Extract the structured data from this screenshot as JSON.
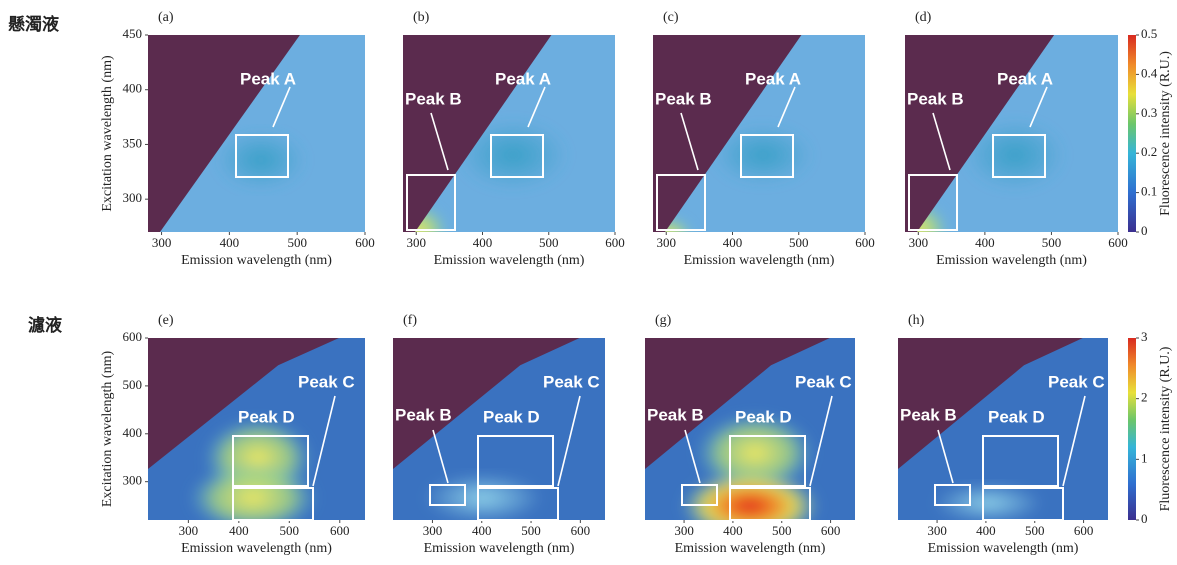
{
  "row_labels": [
    "懸濁液",
    "濾液"
  ],
  "chart_data": [
    {
      "type": "heatmap",
      "panel": "(a)",
      "xlabel": "Emission wavelength (nm)",
      "ylabel": "Excitation wavelength (nm)",
      "xlim": [
        280,
        600
      ],
      "xticks": [
        300,
        400,
        500,
        600
      ],
      "ylim": [
        270,
        450
      ],
      "yticks": [
        300,
        350,
        400,
        450
      ],
      "annotations": [
        "Peak A"
      ]
    },
    {
      "type": "heatmap",
      "panel": "(b)",
      "xlabel": "Emission wavelength (nm)",
      "xlim": [
        280,
        600
      ],
      "xticks": [
        300,
        400,
        500,
        600
      ],
      "ylim": [
        270,
        450
      ],
      "annotations": [
        "Peak B",
        "Peak A"
      ]
    },
    {
      "type": "heatmap",
      "panel": "(c)",
      "xlabel": "Emission wavelength (nm)",
      "xlim": [
        280,
        600
      ],
      "xticks": [
        300,
        400,
        500,
        600
      ],
      "ylim": [
        270,
        450
      ],
      "annotations": [
        "Peak B",
        "Peak A"
      ]
    },
    {
      "type": "heatmap",
      "panel": "(d)",
      "xlabel": "Emission wavelength (nm)",
      "xlim": [
        280,
        600
      ],
      "xticks": [
        300,
        400,
        500,
        600
      ],
      "ylim": [
        270,
        450
      ],
      "annotations": [
        "Peak B",
        "Peak A"
      ],
      "colorbar": {
        "label": "Fluorescence intensity (R.U.)",
        "lim": [
          0,
          0.5
        ],
        "ticks": [
          0,
          0.1,
          0.2,
          0.3,
          0.4,
          0.5
        ]
      }
    },
    {
      "type": "heatmap",
      "panel": "(e)",
      "xlabel": "Emission wavelength (nm)",
      "ylabel": "Excitation wavelength (nm)",
      "xlim": [
        220,
        650
      ],
      "xticks": [
        300,
        400,
        500,
        600
      ],
      "ylim": [
        220,
        600
      ],
      "yticks": [
        300,
        400,
        500,
        600
      ],
      "annotations": [
        "Peak D",
        "Peak C"
      ]
    },
    {
      "type": "heatmap",
      "panel": "(f)",
      "xlabel": "Emission wavelength (nm)",
      "xlim": [
        220,
        650
      ],
      "xticks": [
        300,
        400,
        500,
        600
      ],
      "ylim": [
        220,
        600
      ],
      "annotations": [
        "Peak B",
        "Peak D",
        "Peak C"
      ]
    },
    {
      "type": "heatmap",
      "panel": "(g)",
      "xlabel": "Emission wavelength (nm)",
      "xlim": [
        220,
        650
      ],
      "xticks": [
        300,
        400,
        500,
        600
      ],
      "ylim": [
        220,
        600
      ],
      "annotations": [
        "Peak B",
        "Peak D",
        "Peak C"
      ]
    },
    {
      "type": "heatmap",
      "panel": "(h)",
      "xlabel": "Emission wavelength (nm)",
      "xlim": [
        220,
        650
      ],
      "xticks": [
        300,
        400,
        500,
        600
      ],
      "ylim": [
        220,
        600
      ],
      "annotations": [
        "Peak B",
        "Peak D",
        "Peak C"
      ],
      "colorbar": {
        "label": "Fluorescence intensity (R.U.)",
        "lim": [
          0,
          3
        ],
        "ticks": [
          0,
          1,
          2,
          3
        ]
      }
    }
  ]
}
